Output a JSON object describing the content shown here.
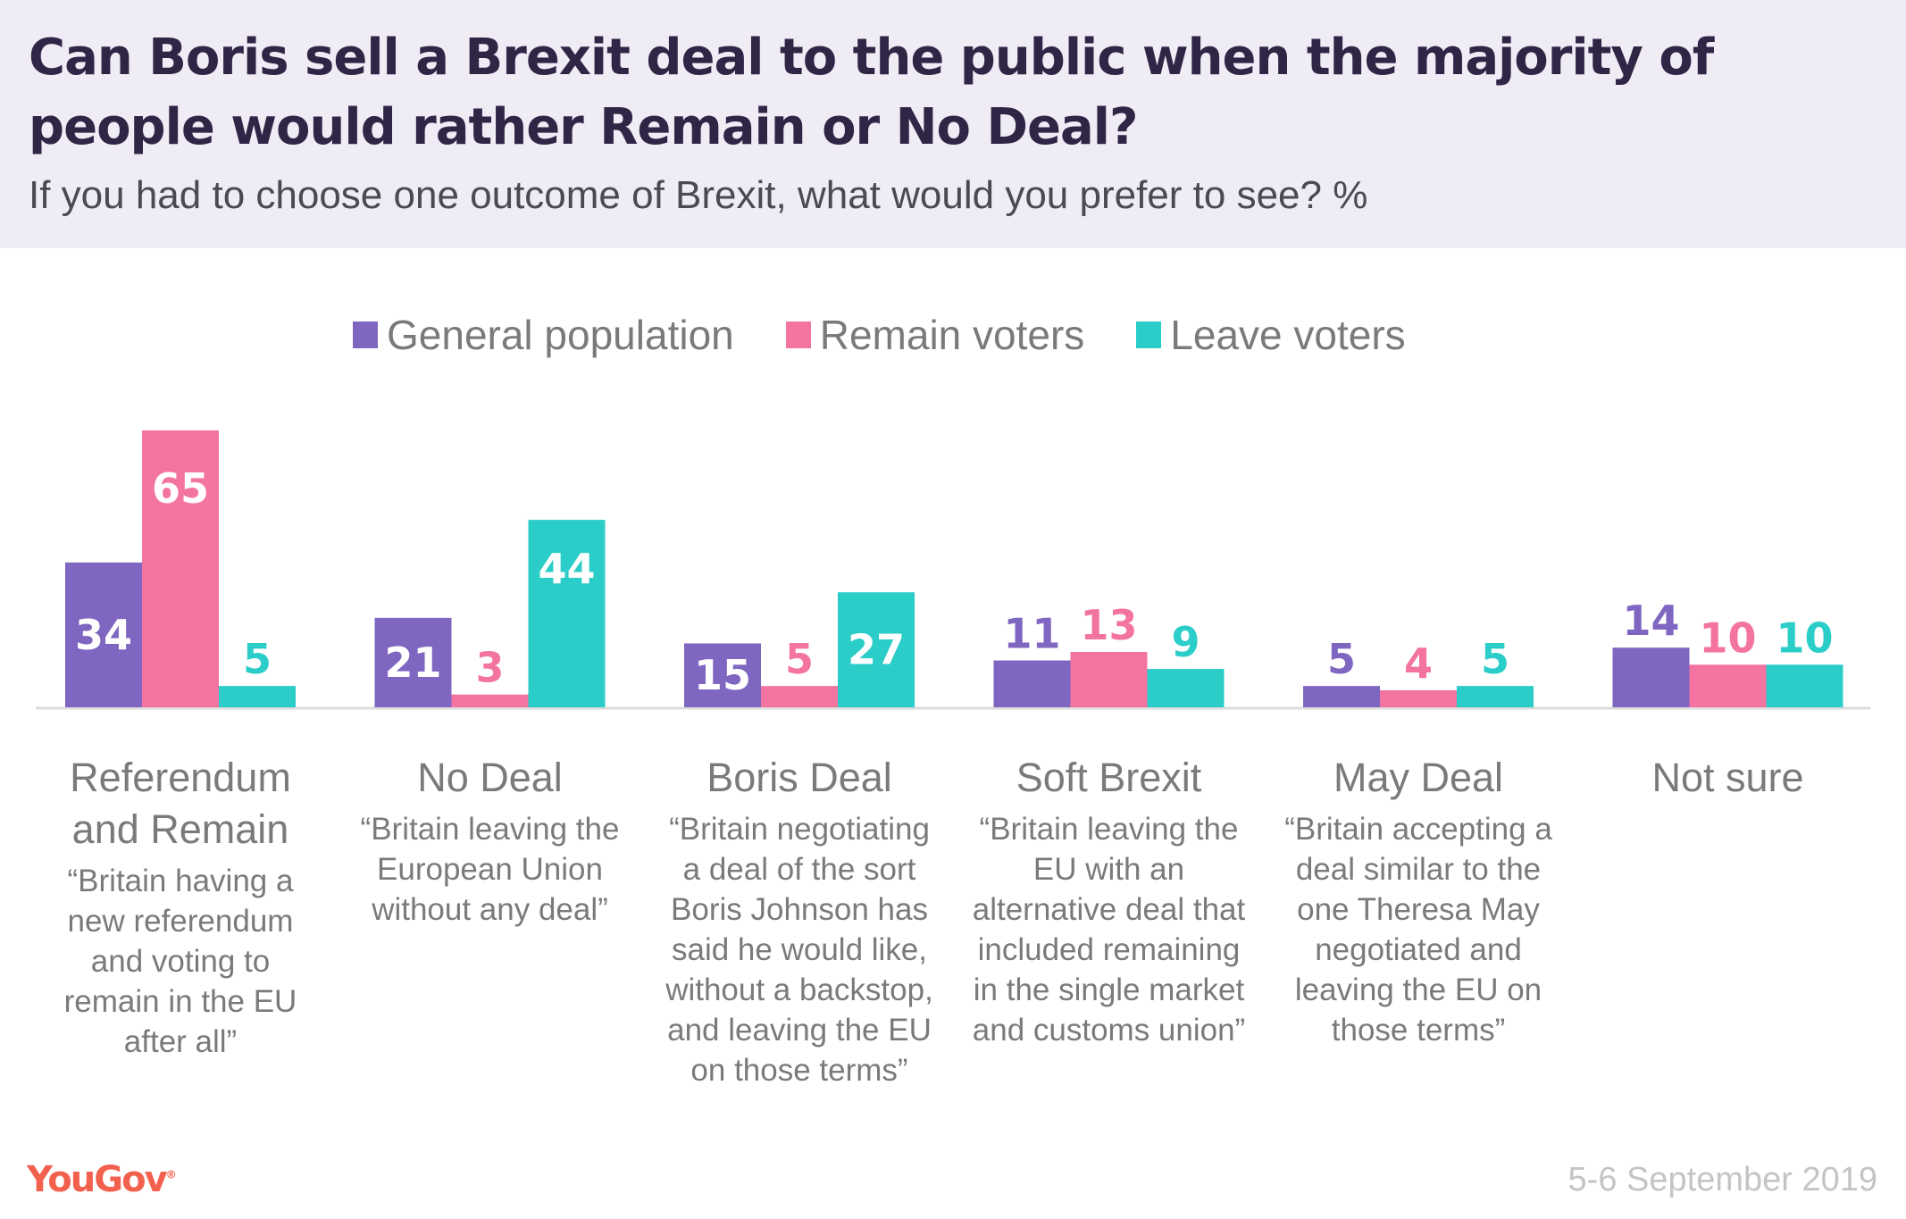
{
  "header": {
    "title": "Can Boris sell a Brexit deal to the public when the majority of people would rather Remain or No Deal?",
    "subtitle": "If you had to choose one outcome of Brexit, what would you prefer to see? %"
  },
  "footer": {
    "logo": "YouGov",
    "logo_mark": "®",
    "date": "5-6 September 2019"
  },
  "colors": {
    "General population": "#7e66c1",
    "Remain voters": "#f374a1",
    "Leave voters": "#2bcdc8",
    "header_bg": "#efecf6",
    "title": "#2f2646",
    "logo": "#f2604e"
  },
  "chart_data": {
    "type": "bar",
    "title": "Can Boris sell a Brexit deal to the public when the majority of people would rather Remain or No Deal?",
    "subtitle": "If you had to choose one outcome of Brexit, what would you prefer to see? %",
    "xlabel": "",
    "ylabel": "%",
    "ylim": [
      0,
      65
    ],
    "grid": false,
    "legend_position": "top-center",
    "categories": [
      "Referendum and Remain",
      "No Deal",
      "Boris Deal",
      "Soft Brexit",
      "May Deal",
      "Not sure"
    ],
    "descriptions": [
      "“Britain having a new referendum and voting to remain in the EU after all”",
      "“Britain leaving the European Union without any deal”",
      "“Britain negotiating a deal of the sort Boris Johnson has said he would like, without a backstop, and leaving the EU on those terms”",
      "“Britain leaving the EU with an alternative deal that included remaining in the single market and customs union”",
      "“Britain accepting a deal similar to the one Theresa May negotiated and leaving the EU on those terms”",
      ""
    ],
    "series": [
      {
        "name": "General population",
        "color": "#7e66c1",
        "values": [
          34,
          21,
          15,
          11,
          5,
          14
        ]
      },
      {
        "name": "Remain voters",
        "color": "#f374a1",
        "values": [
          65,
          3,
          5,
          13,
          4,
          10
        ]
      },
      {
        "name": "Leave voters",
        "color": "#2bcdc8",
        "values": [
          5,
          44,
          27,
          9,
          5,
          10
        ]
      }
    ]
  }
}
